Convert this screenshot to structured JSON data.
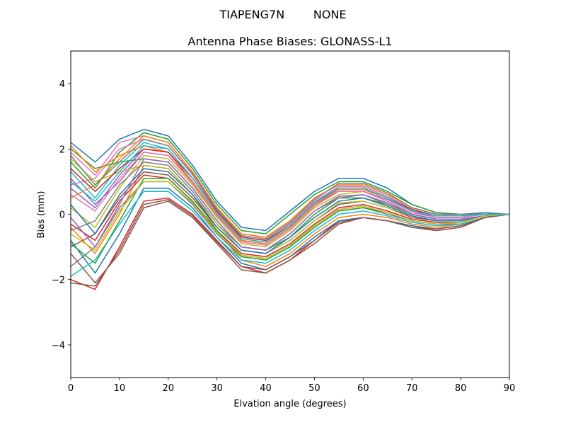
{
  "chart_data": {
    "type": "line",
    "suptitle": "TIAPENG7N        NONE",
    "title": "Antenna Phase Biases: GLONASS-L1",
    "xlabel": "Elvation angle (degrees)",
    "ylabel": "Bias (mm)",
    "xlim": [
      0,
      90
    ],
    "ylim": [
      -5,
      5
    ],
    "xticks": [
      "0",
      "10",
      "20",
      "30",
      "40",
      "50",
      "60",
      "70",
      "80",
      "90"
    ],
    "yticks": [
      "−4",
      "−2",
      "0",
      "2",
      "4"
    ],
    "x": [
      0,
      5,
      10,
      15,
      20,
      25,
      30,
      35,
      40,
      45,
      50,
      55,
      60,
      65,
      70,
      75,
      80,
      85,
      90
    ],
    "colors": [
      "#1f77b4",
      "#ff7f0e",
      "#2ca02c",
      "#d62728",
      "#9467bd",
      "#8c564b",
      "#e377c2",
      "#7f7f7f",
      "#bcbd22",
      "#17becf"
    ],
    "grid": false,
    "series": [
      {
        "values": [
          2.2,
          1.6,
          2.3,
          2.6,
          2.4,
          1.5,
          0.4,
          -0.4,
          -0.5,
          0.1,
          0.7,
          1.1,
          1.1,
          0.8,
          0.3,
          0.05,
          0.0,
          0.05,
          0.0
        ]
      },
      {
        "values": [
          -0.4,
          -1.2,
          0.0,
          1.5,
          1.4,
          0.6,
          -0.5,
          -1.4,
          -1.6,
          -1.2,
          -0.6,
          -0.1,
          0.0,
          -0.1,
          -0.3,
          -0.4,
          -0.3,
          -0.1,
          0.0
        ]
      },
      {
        "values": [
          1.6,
          0.8,
          1.9,
          2.5,
          2.3,
          1.4,
          0.3,
          -0.5,
          -0.6,
          0.0,
          0.6,
          1.0,
          1.0,
          0.7,
          0.3,
          0.05,
          0.0,
          0.0,
          0.0
        ]
      },
      {
        "values": [
          -2.0,
          -2.3,
          -1.0,
          0.4,
          0.5,
          0.0,
          -0.8,
          -1.6,
          -1.8,
          -1.4,
          -0.8,
          -0.2,
          -0.1,
          -0.2,
          -0.4,
          -0.5,
          -0.4,
          -0.1,
          0.0
        ]
      },
      {
        "values": [
          0.8,
          0.2,
          1.2,
          2.0,
          1.9,
          1.0,
          0.0,
          -0.8,
          -0.9,
          -0.4,
          0.3,
          0.8,
          0.8,
          0.5,
          0.1,
          -0.1,
          -0.1,
          0.0,
          0.0
        ]
      },
      {
        "values": [
          -1.0,
          -0.6,
          0.5,
          1.3,
          1.2,
          0.5,
          -0.4,
          -1.1,
          -1.2,
          -0.8,
          -0.2,
          0.3,
          0.4,
          0.2,
          -0.1,
          -0.2,
          -0.2,
          -0.05,
          0.0
        ]
      },
      {
        "values": [
          1.9,
          1.2,
          2.2,
          2.4,
          2.2,
          1.3,
          0.2,
          -0.6,
          -0.7,
          -0.2,
          0.5,
          0.9,
          0.9,
          0.6,
          0.2,
          0.0,
          -0.05,
          0.0,
          0.0
        ]
      },
      {
        "values": [
          -1.6,
          -1.0,
          0.2,
          1.0,
          1.0,
          0.3,
          -0.6,
          -1.3,
          -1.4,
          -1.0,
          -0.4,
          0.1,
          0.2,
          0.0,
          -0.2,
          -0.3,
          -0.3,
          -0.1,
          0.0
        ]
      },
      {
        "values": [
          0.2,
          -0.4,
          0.8,
          1.8,
          1.7,
          0.9,
          -0.1,
          -0.9,
          -1.0,
          -0.5,
          0.2,
          0.6,
          0.7,
          0.4,
          0.0,
          -0.15,
          -0.15,
          -0.05,
          0.0
        ]
      },
      {
        "values": [
          1.3,
          0.5,
          1.5,
          2.2,
          2.0,
          1.1,
          0.1,
          -0.7,
          -0.8,
          -0.3,
          0.4,
          0.8,
          0.8,
          0.5,
          0.15,
          -0.05,
          -0.05,
          0.0,
          0.0
        ]
      },
      {
        "values": [
          -0.8,
          -1.8,
          -0.6,
          0.8,
          0.8,
          0.2,
          -0.7,
          -1.5,
          -1.7,
          -1.3,
          -0.7,
          -0.2,
          -0.1,
          -0.2,
          -0.35,
          -0.45,
          -0.35,
          -0.1,
          0.0
        ]
      },
      {
        "values": [
          0.5,
          0.9,
          1.7,
          2.4,
          2.2,
          1.3,
          0.2,
          -0.6,
          -0.7,
          -0.2,
          0.5,
          0.9,
          0.9,
          0.6,
          0.2,
          0.0,
          0.0,
          0.0,
          0.0
        ]
      },
      {
        "values": [
          2.0,
          1.4,
          1.6,
          1.7,
          1.6,
          0.8,
          -0.2,
          -1.0,
          -1.1,
          -0.7,
          0.0,
          0.5,
          0.5,
          0.3,
          0.0,
          -0.15,
          -0.15,
          -0.05,
          0.0
        ]
      },
      {
        "values": [
          -0.3,
          -0.8,
          0.4,
          1.2,
          1.1,
          0.4,
          -0.5,
          -1.2,
          -1.3,
          -0.9,
          -0.3,
          0.2,
          0.3,
          0.1,
          -0.15,
          -0.25,
          -0.25,
          -0.05,
          0.0
        ]
      },
      {
        "values": [
          1.1,
          0.3,
          1.0,
          1.9,
          1.8,
          1.0,
          0.0,
          -0.8,
          -0.9,
          -0.4,
          0.3,
          0.7,
          0.7,
          0.45,
          0.1,
          -0.1,
          -0.1,
          0.0,
          0.0
        ]
      },
      {
        "values": [
          -1.2,
          -2.1,
          -1.2,
          0.2,
          0.4,
          -0.1,
          -0.9,
          -1.7,
          -1.8,
          -1.4,
          -0.9,
          -0.3,
          -0.1,
          -0.2,
          -0.4,
          -0.5,
          -0.4,
          -0.1,
          0.0
        ]
      },
      {
        "values": [
          0.9,
          1.1,
          2.0,
          2.3,
          2.1,
          1.2,
          0.1,
          -0.7,
          -0.8,
          -0.3,
          0.4,
          0.85,
          0.85,
          0.55,
          0.15,
          -0.05,
          -0.05,
          0.0,
          0.0
        ]
      },
      {
        "values": [
          -0.5,
          -0.2,
          0.9,
          1.6,
          1.5,
          0.7,
          -0.3,
          -1.0,
          -1.1,
          -0.6,
          0.1,
          0.5,
          0.6,
          0.3,
          0.0,
          -0.15,
          -0.15,
          -0.05,
          0.0
        ]
      },
      {
        "values": [
          1.7,
          1.0,
          1.3,
          1.5,
          1.4,
          0.6,
          -0.3,
          -1.1,
          -1.2,
          -0.8,
          -0.2,
          0.35,
          0.4,
          0.2,
          -0.05,
          -0.2,
          -0.2,
          -0.05,
          0.0
        ]
      },
      {
        "values": [
          -1.9,
          -1.4,
          -0.3,
          0.7,
          0.7,
          0.1,
          -0.7,
          -1.4,
          -1.5,
          -1.1,
          -0.5,
          0.0,
          0.1,
          -0.05,
          -0.25,
          -0.35,
          -0.3,
          -0.1,
          0.0
        ]
      },
      {
        "values": [
          0.3,
          -0.6,
          0.6,
          1.4,
          1.3,
          0.6,
          -0.4,
          -1.1,
          -1.2,
          -0.7,
          -0.1,
          0.4,
          0.5,
          0.25,
          -0.05,
          -0.2,
          -0.2,
          -0.05,
          0.0
        ]
      },
      {
        "values": [
          2.1,
          1.3,
          1.8,
          2.1,
          1.9,
          1.0,
          0.0,
          -0.8,
          -0.9,
          -0.4,
          0.3,
          0.75,
          0.75,
          0.5,
          0.1,
          -0.05,
          -0.05,
          0.0,
          0.0
        ]
      },
      {
        "values": [
          -0.9,
          -1.5,
          -0.2,
          1.1,
          1.1,
          0.4,
          -0.5,
          -1.3,
          -1.4,
          -1.0,
          -0.4,
          0.1,
          0.2,
          0.05,
          -0.2,
          -0.3,
          -0.25,
          -0.05,
          0.0
        ]
      },
      {
        "values": [
          1.4,
          0.7,
          1.4,
          2.0,
          1.9,
          1.1,
          0.1,
          -0.7,
          -0.8,
          -0.35,
          0.35,
          0.8,
          0.8,
          0.5,
          0.15,
          -0.05,
          -0.05,
          0.0,
          0.0
        ]
      },
      {
        "values": [
          -0.1,
          -1.0,
          0.3,
          1.7,
          1.6,
          0.8,
          -0.2,
          -1.0,
          -1.1,
          -0.6,
          0.1,
          0.55,
          0.6,
          0.35,
          0.0,
          -0.15,
          -0.15,
          -0.05,
          0.0
        ]
      },
      {
        "values": [
          -2.1,
          -2.2,
          -1.1,
          0.3,
          0.45,
          -0.05,
          -0.85,
          -1.6,
          -1.7,
          -1.3,
          -0.8,
          -0.25,
          -0.1,
          -0.2,
          -0.4,
          -0.45,
          -0.35,
          -0.1,
          0.0
        ]
      },
      {
        "values": [
          0.6,
          0.1,
          1.1,
          1.9,
          1.8,
          0.95,
          -0.05,
          -0.85,
          -0.95,
          -0.45,
          0.25,
          0.7,
          0.7,
          0.4,
          0.05,
          -0.1,
          -0.1,
          0.0,
          0.0
        ]
      },
      {
        "values": [
          1.8,
          0.9,
          1.6,
          2.3,
          2.1,
          1.25,
          0.15,
          -0.65,
          -0.75,
          -0.25,
          0.45,
          0.95,
          0.95,
          0.65,
          0.2,
          0.0,
          0.0,
          0.0,
          0.0
        ]
      },
      {
        "values": [
          -0.6,
          -1.1,
          0.1,
          1.0,
          1.0,
          0.35,
          -0.55,
          -1.25,
          -1.35,
          -0.95,
          -0.35,
          0.15,
          0.25,
          0.05,
          -0.2,
          -0.3,
          -0.25,
          -0.05,
          0.0
        ]
      },
      {
        "values": [
          1.0,
          0.4,
          1.3,
          2.1,
          2.0,
          1.1,
          0.05,
          -0.75,
          -0.85,
          -0.35,
          0.35,
          0.8,
          0.8,
          0.5,
          0.1,
          -0.05,
          -0.05,
          0.0,
          0.0
        ]
      }
    ]
  }
}
